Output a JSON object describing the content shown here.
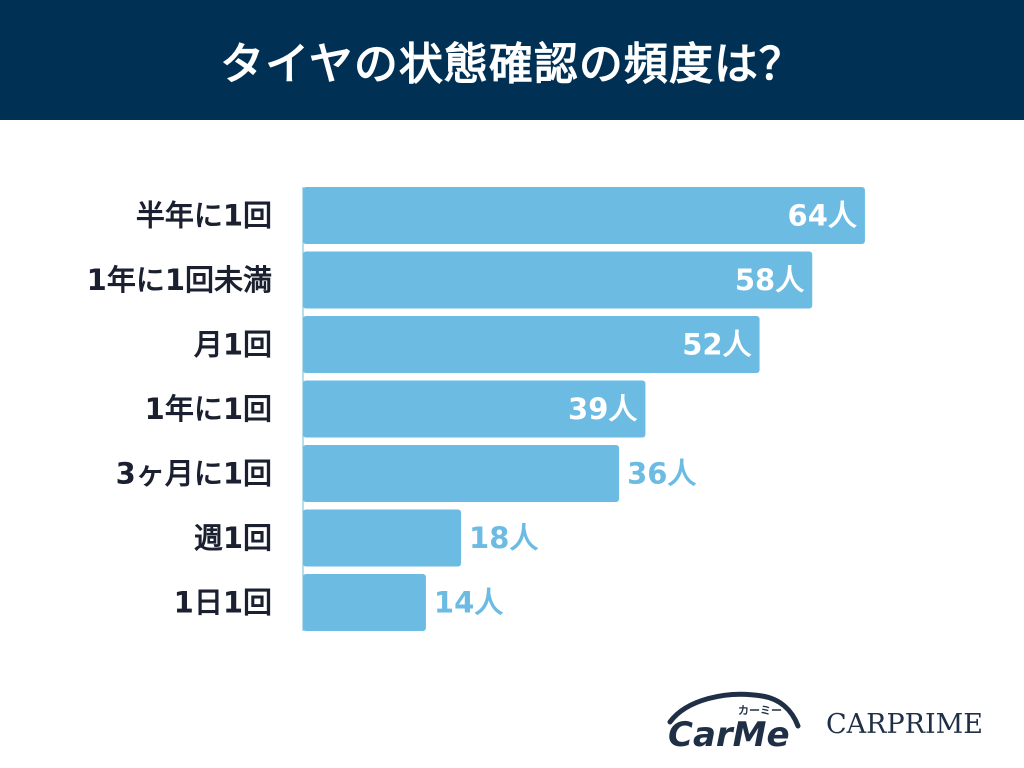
{
  "title": "タイヤの状態確認の頻度は？",
  "colors": {
    "header_bg": "#003155",
    "bar": "#6bbbe3",
    "label_inside": "#ffffff",
    "label_outside": "#6bbbe3",
    "category_text": "#1a2030",
    "logo": "#1f2f45"
  },
  "chart_data": {
    "type": "bar",
    "orientation": "horizontal",
    "categories": [
      "半年に1回",
      "1年に1回未満",
      "月1回",
      "1年に1回",
      "3ヶ月に1回",
      "週1回",
      "1日1回"
    ],
    "values": [
      64,
      58,
      52,
      39,
      36,
      18,
      14
    ],
    "value_suffix": "人",
    "title": "タイヤの状態確認の頻度は？",
    "xlabel": "",
    "ylabel": "",
    "grid": false,
    "legend": "none"
  },
  "logos": {
    "carme_kana": "カーミー",
    "carme_text": "CarMe",
    "carprime_text": "CARPRIME"
  }
}
